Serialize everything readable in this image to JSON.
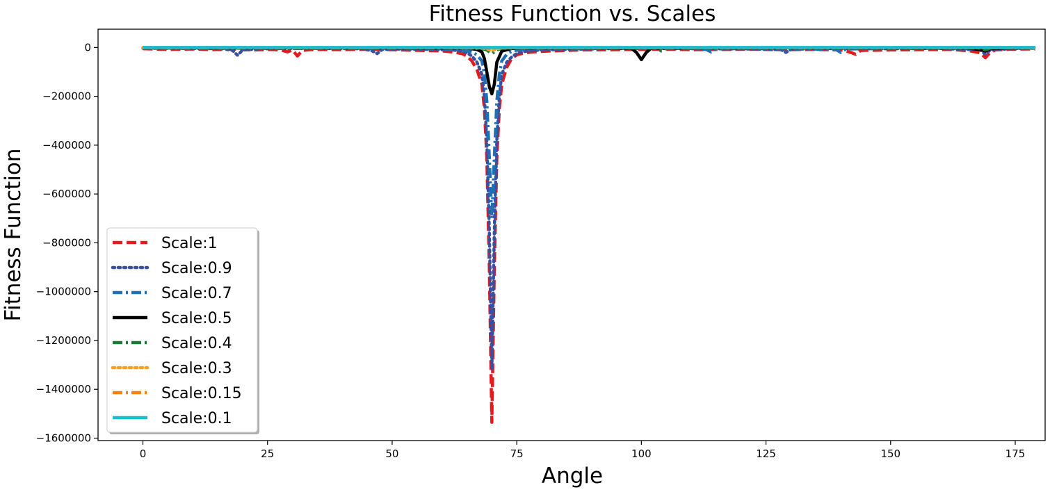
{
  "chart_data": {
    "type": "line",
    "title": "Fitness Function vs. Scales",
    "xlabel": "Angle",
    "ylabel": "Fitness Function",
    "xlim": [
      -9,
      181
    ],
    "ylim": [
      -1610000,
      75000
    ],
    "xticks": [
      0,
      25,
      50,
      75,
      100,
      125,
      150,
      175
    ],
    "xtick_labels": [
      "0",
      "25",
      "50",
      "75",
      "100",
      "125",
      "150",
      "175"
    ],
    "yticks": [
      0,
      -200000,
      -400000,
      -600000,
      -800000,
      -1000000,
      -1200000,
      -1400000,
      -1600000
    ],
    "ytick_labels": [
      "0",
      "−200000",
      "−400000",
      "−600000",
      "−800000",
      "−1000000",
      "−1200000",
      "−1400000",
      "−1600000"
    ],
    "legend_position": "lower-left",
    "series": [
      {
        "name": "Scale:1",
        "color": "#e41a1c",
        "style": "dashed",
        "x": [
          0,
          5,
          10,
          14,
          18,
          22,
          26,
          28,
          29,
          30,
          31,
          32,
          34,
          40,
          46,
          52,
          56,
          60,
          62,
          64,
          65,
          66,
          67,
          68,
          68.5,
          69,
          69.5,
          70,
          70.5,
          71,
          71.5,
          72,
          73,
          74,
          75,
          76,
          78,
          82,
          88,
          95,
          100,
          106,
          110,
          116,
          122,
          128,
          134,
          140,
          141,
          142,
          143,
          144,
          150,
          156,
          162,
          166,
          168,
          169,
          170,
          171,
          174,
          179
        ],
        "y": [
          -5000,
          -8000,
          -6000,
          -9000,
          -7000,
          -10000,
          -8000,
          -12000,
          -18000,
          -10000,
          -35000,
          -12000,
          -8000,
          -9000,
          -7000,
          -10000,
          -12000,
          -14000,
          -18000,
          -25000,
          -35000,
          -55000,
          -90000,
          -150000,
          -250000,
          -450000,
          -900000,
          -1535000,
          -900000,
          -450000,
          -250000,
          -150000,
          -80000,
          -45000,
          -30000,
          -25000,
          -18000,
          -14000,
          -10000,
          -9000,
          -8000,
          -7000,
          -9000,
          -8000,
          -7000,
          -9000,
          -8000,
          -10000,
          -14000,
          -20000,
          -28000,
          -12000,
          -10000,
          -9000,
          -8000,
          -14000,
          -22000,
          -42000,
          -20000,
          -10000,
          -7000,
          -6000
        ]
      },
      {
        "name": "Scale:0.9",
        "color": "#3a4fa0",
        "style": "dotted",
        "x": [
          0,
          8,
          16,
          18,
          19,
          20,
          24,
          34,
          44,
          46,
          47,
          48,
          52,
          58,
          62,
          64,
          65,
          66,
          67,
          68,
          68.5,
          69,
          69.5,
          70,
          70.5,
          71,
          71.5,
          72,
          73,
          74,
          75,
          76,
          78,
          84,
          92,
          102,
          112,
          122,
          128,
          129,
          130,
          134,
          140,
          150,
          160,
          168,
          169,
          170,
          174,
          179
        ],
        "y": [
          -3000,
          -4000,
          -5000,
          -12000,
          -32000,
          -10000,
          -5000,
          -4000,
          -5000,
          -14000,
          -25000,
          -8000,
          -6000,
          -8000,
          -10000,
          -15000,
          -22000,
          -35000,
          -60000,
          -110000,
          -200000,
          -380000,
          -750000,
          -1320000,
          -750000,
          -380000,
          -200000,
          -110000,
          -60000,
          -38000,
          -25000,
          -18000,
          -12000,
          -8000,
          -5000,
          -4000,
          -5000,
          -6000,
          -9000,
          -20000,
          -8000,
          -5000,
          -4000,
          -5000,
          -4000,
          -10000,
          -28000,
          -10000,
          -5000,
          -3000
        ]
      },
      {
        "name": "Scale:0.7",
        "color": "#1f6fb4",
        "style": "dashdot",
        "x": [
          0,
          10,
          20,
          30,
          40,
          50,
          60,
          64,
          66,
          67,
          68,
          68.5,
          69,
          69.5,
          70,
          70.5,
          71,
          71.5,
          72,
          73,
          74,
          76,
          80,
          90,
          100,
          110,
          113,
          114,
          115,
          120,
          130,
          139,
          140,
          141,
          150,
          160,
          168,
          169,
          170,
          175,
          179
        ],
        "y": [
          -2000,
          -3000,
          -3000,
          -4000,
          -3000,
          -4000,
          -6000,
          -10000,
          -18000,
          -30000,
          -55000,
          -110000,
          -220000,
          -450000,
          -700000,
          -450000,
          -220000,
          -110000,
          -55000,
          -28000,
          -15000,
          -8000,
          -5000,
          -4000,
          -3000,
          -4000,
          -8000,
          -18000,
          -6000,
          -4000,
          -5000,
          -8000,
          -20000,
          -6000,
          -4000,
          -3000,
          -6000,
          -12000,
          -5000,
          -3000,
          -2000
        ]
      },
      {
        "name": "Scale:0.5",
        "color": "#000000",
        "style": "solid",
        "x": [
          0,
          20,
          40,
          60,
          65,
          67,
          68,
          68.5,
          69,
          69.5,
          70,
          70.5,
          71,
          72,
          74,
          80,
          90,
          98,
          99,
          100,
          101,
          102,
          110,
          130,
          150,
          165,
          168,
          169,
          170,
          175,
          179
        ],
        "y": [
          -1000,
          -1500,
          -1500,
          -2000,
          -3000,
          -8000,
          -18000,
          -45000,
          -100000,
          -160000,
          -190000,
          -150000,
          -60000,
          -15000,
          -4000,
          -2000,
          -1500,
          -3000,
          -20000,
          -50000,
          -20000,
          -3000,
          -1500,
          -1500,
          -1500,
          -2000,
          -8000,
          -15000,
          -5000,
          -1500,
          -1000
        ]
      },
      {
        "name": "Scale:0.4",
        "color": "#1b7a36",
        "style": "dashdot",
        "x": [
          0,
          30,
          60,
          68,
          69,
          70,
          71,
          72,
          90,
          103,
          104,
          105,
          120,
          150,
          168,
          169,
          170,
          179
        ],
        "y": [
          -800,
          -1000,
          -1500,
          -4000,
          -10000,
          -25000,
          -10000,
          -3000,
          -1200,
          -2000,
          -14000,
          -2000,
          -1000,
          -1000,
          -2000,
          -10000,
          -2000,
          -800
        ]
      },
      {
        "name": "Scale:0.3",
        "color": "#ff9f1c",
        "style": "dotted",
        "x": [
          0,
          30,
          60,
          68,
          69,
          70,
          71,
          72,
          100,
          130,
          160,
          179
        ],
        "y": [
          -500,
          -700,
          -800,
          -2000,
          -6000,
          -12000,
          -6000,
          -1500,
          -600,
          -600,
          -600,
          -500
        ]
      },
      {
        "name": "Scale:0.15",
        "color": "#ff7f0e",
        "style": "dashdot",
        "x": [
          0,
          30,
          60,
          69,
          70,
          71,
          100,
          130,
          160,
          179
        ],
        "y": [
          -300,
          -400,
          -400,
          -1500,
          -4000,
          -1500,
          -400,
          -400,
          -400,
          -300
        ]
      },
      {
        "name": "Scale:0.1",
        "color": "#17becf",
        "style": "solid",
        "x": [
          0,
          179
        ],
        "y": [
          -200,
          -200
        ]
      }
    ]
  }
}
